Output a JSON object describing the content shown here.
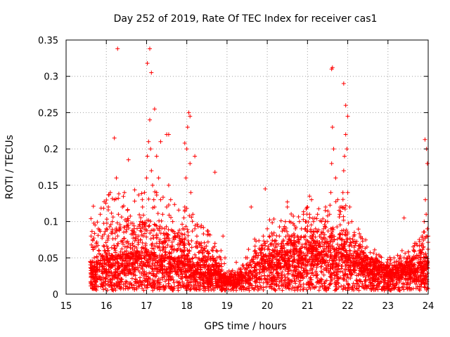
{
  "chart_data": {
    "type": "scatter",
    "title": "Day 252 of 2019, Rate Of TEC Index for receiver cas1",
    "xlabel": "GPS time / hours",
    "ylabel": "ROTI / TECUs",
    "xlim": [
      15,
      24
    ],
    "ylim": [
      0,
      0.35
    ],
    "x_ticks": [
      "15",
      "16",
      "17",
      "18",
      "19",
      "20",
      "21",
      "22",
      "23",
      "24"
    ],
    "y_ticks": [
      "0",
      "0.05",
      "0.1",
      "0.15",
      "0.2",
      "0.25",
      "0.3",
      "0.35"
    ],
    "grid": true,
    "marker": "+",
    "series": [
      {
        "name": "ROTI",
        "color": "#ff0000",
        "x": [
          15.65,
          15.7,
          15.75,
          15.8,
          15.85,
          15.9,
          15.95,
          16.0,
          16.05,
          16.1,
          16.15,
          16.2,
          16.25,
          16.3,
          16.35,
          16.4,
          16.45,
          16.5,
          16.55,
          16.6,
          16.65,
          16.7,
          16.75,
          16.8,
          16.85,
          16.9,
          16.95,
          17.0,
          17.02,
          17.05,
          17.08,
          17.1,
          17.12,
          17.15,
          17.18,
          17.2,
          17.25,
          17.3,
          17.35,
          17.4,
          17.45,
          17.5,
          17.55,
          17.6,
          17.65,
          17.7,
          17.75,
          17.8,
          17.85,
          17.9,
          17.95,
          17.98,
          18.0,
          18.02,
          18.05,
          18.08,
          18.1,
          18.15,
          18.2,
          18.25,
          18.3,
          18.35,
          18.4,
          18.45,
          18.5,
          18.55,
          18.6,
          18.65,
          18.7,
          18.75,
          18.8,
          18.85,
          18.9,
          18.95,
          19.0,
          19.05,
          19.1,
          19.15,
          19.2,
          19.25,
          19.3,
          19.35,
          19.4,
          19.45,
          19.5,
          19.55,
          19.6,
          19.65,
          19.7,
          19.75,
          19.8,
          19.85,
          19.9,
          19.95,
          20.0,
          20.05,
          20.1,
          20.15,
          20.2,
          20.25,
          20.3,
          20.35,
          20.4,
          20.45,
          20.5,
          20.55,
          20.6,
          20.65,
          20.7,
          20.75,
          20.8,
          20.85,
          20.9,
          20.95,
          21.0,
          21.05,
          21.1,
          21.15,
          21.2,
          21.25,
          21.3,
          21.35,
          21.4,
          21.45,
          21.5,
          21.55,
          21.58,
          21.6,
          21.62,
          21.65,
          21.7,
          21.75,
          21.8,
          21.85,
          21.88,
          21.9,
          21.92,
          21.95,
          21.98,
          22.0,
          22.05,
          22.1,
          22.15,
          22.2,
          22.25,
          22.3,
          22.35,
          22.4,
          22.45,
          22.5,
          22.55,
          22.6,
          22.65,
          22.7,
          22.75,
          22.8,
          22.85,
          22.9,
          22.95,
          23.0,
          23.05,
          23.1,
          23.15,
          23.2,
          23.25,
          23.3,
          23.35,
          23.4,
          23.45,
          23.5,
          23.55,
          23.6,
          23.65,
          23.7,
          23.75,
          23.8,
          23.85,
          23.9,
          23.93,
          23.95,
          23.98,
          24.0,
          16.28,
          17.02,
          17.08,
          17.12,
          17.2,
          17.35,
          17.55,
          17.95,
          18.08,
          18.7,
          19.6,
          19.95,
          20.5,
          21.05,
          21.6,
          21.62,
          21.9,
          21.95,
          22.0,
          23.4,
          23.92,
          23.96,
          23.98,
          16.2,
          16.55,
          17.25,
          17.5,
          18.2
        ],
        "y": [
          0.03,
          0.05,
          0.07,
          0.09,
          0.11,
          0.08,
          0.06,
          0.09,
          0.12,
          0.14,
          0.1,
          0.13,
          0.16,
          0.11,
          0.09,
          0.12,
          0.14,
          0.1,
          0.07,
          0.05,
          0.04,
          0.06,
          0.05,
          0.08,
          0.1,
          0.12,
          0.14,
          0.16,
          0.19,
          0.21,
          0.24,
          0.2,
          0.17,
          0.15,
          0.13,
          0.12,
          0.14,
          0.16,
          0.13,
          0.11,
          0.09,
          0.12,
          0.15,
          0.13,
          0.1,
          0.08,
          0.06,
          0.05,
          0.07,
          0.09,
          0.12,
          0.16,
          0.2,
          0.23,
          0.25,
          0.18,
          0.14,
          0.11,
          0.09,
          0.08,
          0.07,
          0.06,
          0.05,
          0.06,
          0.05,
          0.04,
          0.05,
          0.06,
          0.07,
          0.05,
          0.04,
          0.06,
          0.08,
          0.05,
          0.03,
          0.02,
          0.02,
          0.02,
          0.03,
          0.03,
          0.02,
          0.03,
          0.04,
          0.03,
          0.05,
          0.04,
          0.03,
          0.05,
          0.06,
          0.05,
          0.04,
          0.06,
          0.08,
          0.07,
          0.09,
          0.08,
          0.07,
          0.06,
          0.05,
          0.06,
          0.08,
          0.07,
          0.09,
          0.1,
          0.12,
          0.1,
          0.08,
          0.07,
          0.09,
          0.08,
          0.1,
          0.09,
          0.11,
          0.1,
          0.12,
          0.11,
          0.13,
          0.1,
          0.09,
          0.11,
          0.08,
          0.1,
          0.09,
          0.12,
          0.1,
          0.11,
          0.14,
          0.18,
          0.23,
          0.2,
          0.16,
          0.13,
          0.11,
          0.12,
          0.14,
          0.17,
          0.19,
          0.22,
          0.2,
          0.14,
          0.12,
          0.1,
          0.08,
          0.07,
          0.06,
          0.05,
          0.06,
          0.05,
          0.04,
          0.05,
          0.04,
          0.03,
          0.04,
          0.05,
          0.04,
          0.03,
          0.03,
          0.02,
          0.03,
          0.04,
          0.03,
          0.04,
          0.05,
          0.04,
          0.03,
          0.05,
          0.06,
          0.05,
          0.04,
          0.03,
          0.04,
          0.05,
          0.06,
          0.07,
          0.05,
          0.06,
          0.08,
          0.1,
          0.13,
          0.11,
          0.09,
          0.08,
          0.338,
          0.318,
          0.338,
          0.305,
          0.255,
          0.21,
          0.22,
          0.208,
          0.245,
          0.168,
          0.12,
          0.145,
          0.127,
          0.135,
          0.31,
          0.312,
          0.29,
          0.26,
          0.245,
          0.105,
          0.213,
          0.2,
          0.18,
          0.215,
          0.185,
          0.19,
          0.22,
          0.19
        ]
      }
    ],
    "scatter_spec": {
      "cloud_points": 4200,
      "seed": 2522019,
      "base_level_by_hour": [
        [
          15.6,
          0.02
        ],
        [
          15.7,
          0.025
        ],
        [
          16.0,
          0.03
        ],
        [
          16.5,
          0.032
        ],
        [
          17.0,
          0.035
        ],
        [
          17.5,
          0.03
        ],
        [
          18.0,
          0.028
        ],
        [
          18.5,
          0.022
        ],
        [
          19.0,
          0.012
        ],
        [
          19.5,
          0.014
        ],
        [
          19.9,
          0.03
        ],
        [
          20.5,
          0.035
        ],
        [
          21.0,
          0.038
        ],
        [
          21.5,
          0.04
        ],
        [
          22.0,
          0.035
        ],
        [
          22.5,
          0.028
        ],
        [
          23.0,
          0.022
        ],
        [
          23.5,
          0.022
        ],
        [
          24.0,
          0.025
        ]
      ],
      "upper_envelope_by_hour": [
        [
          15.6,
          0.12
        ],
        [
          16.0,
          0.14
        ],
        [
          16.5,
          0.14
        ],
        [
          17.0,
          0.15
        ],
        [
          17.5,
          0.13
        ],
        [
          18.0,
          0.12
        ],
        [
          18.5,
          0.09
        ],
        [
          19.0,
          0.035
        ],
        [
          19.5,
          0.06
        ],
        [
          19.9,
          0.1
        ],
        [
          20.5,
          0.11
        ],
        [
          21.0,
          0.12
        ],
        [
          21.5,
          0.12
        ],
        [
          21.8,
          0.14
        ],
        [
          22.0,
          0.12
        ],
        [
          22.5,
          0.07
        ],
        [
          23.0,
          0.05
        ],
        [
          23.5,
          0.06
        ],
        [
          23.9,
          0.09
        ],
        [
          24.0,
          0.09
        ]
      ]
    }
  }
}
